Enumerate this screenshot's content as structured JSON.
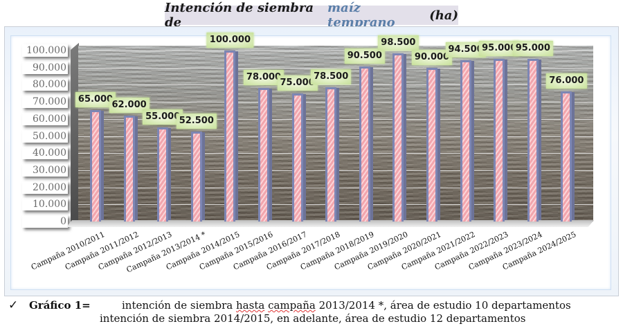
{
  "chart_data": {
    "type": "bar",
    "title": "Intención de siembra de maíz temprano (ha)",
    "title_parts": {
      "pre": "Intención de siembra de",
      "highlight": "maíz temprano",
      "post": "(ha)"
    },
    "xlabel": "",
    "ylabel": "",
    "ylim": [
      0,
      100000
    ],
    "y_ticks": [
      "0",
      "10.000",
      "20.000",
      "30.000",
      "40.000",
      "50.000",
      "60.000",
      "70.000",
      "80.000",
      "90.000",
      "100.000"
    ],
    "grid": true,
    "legend": "none",
    "categories": [
      "Campaña 2010/2011",
      "Campaña 2011/2012",
      "Campaña 2012/2013",
      "Campaña 2013/2014 *",
      "Campaña 2014/2015",
      "Campaña 2015/2016",
      "Campaña 2016/2017",
      "Campaña 2017/2018",
      "Campaña 2018/2019",
      "Campaña 2019/2020",
      "Campaña 2020/2021",
      "Campaña 2021/2022",
      "Campaña 2022/2023",
      "Campaña 2023/2024",
      "Campaña 2024/2025"
    ],
    "values": [
      65000,
      62000,
      55000,
      52500,
      100000,
      78000,
      75000,
      78500,
      90500,
      98500,
      90000,
      94500,
      95000,
      95000,
      76000
    ],
    "value_labels": [
      "65.000",
      "62.000",
      "55.000",
      "52.500",
      "100.000",
      "78.000",
      "75.000",
      "78.500",
      "90.500",
      "98.500",
      "90.000",
      "94.500",
      "95.000",
      "95.000",
      "76.000"
    ],
    "colors": {
      "bar_fill": "#f2a5ad",
      "bar_border": "#7d86b4",
      "label_bg": "#c7e19a",
      "title_highlight": "#5a7ea8"
    }
  },
  "footnote": {
    "check_icon": "✓",
    "label": "Gráfico 1=",
    "line1_pre": "intención de siembra ",
    "line1_flag1": "hasta",
    "line1_mid": " ",
    "line1_flag2": "campaña",
    "line1_post": " 2013/2014 *, área de estudio 10 departamentos",
    "line2": "intención de siembra 2014/2015, en adelante, área de estudio 12 departamentos"
  }
}
